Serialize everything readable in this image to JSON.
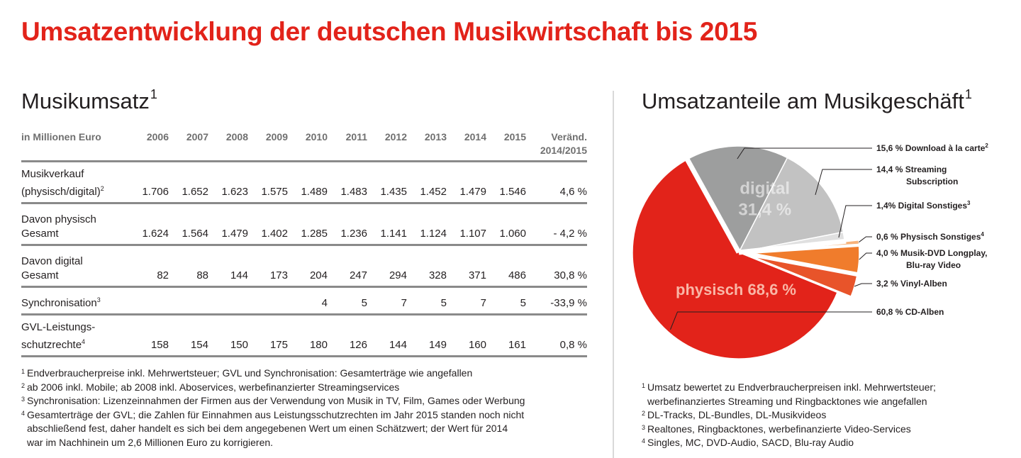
{
  "title": "Umsatzentwicklung der deutschen Musikwirtschaft bis 2015",
  "left": {
    "title": "Musikumsatz",
    "title_sup": "1",
    "columns": [
      "in Millionen Euro",
      "2006",
      "2007",
      "2008",
      "2009",
      "2010",
      "2011",
      "2012",
      "2013",
      "2014",
      "2015"
    ],
    "change_header": [
      "Veränd.",
      "2014/2015"
    ],
    "rows": [
      {
        "label": [
          "Musikverkauf",
          "(physisch/digital)"
        ],
        "sup": "2",
        "values": [
          "1.706",
          "1.652",
          "1.623",
          "1.575",
          "1.489",
          "1.483",
          "1.435",
          "1.452",
          "1.479",
          "1.546"
        ],
        "change": "4,6 %"
      },
      {
        "label": [
          "Davon physisch",
          "Gesamt"
        ],
        "sup": "",
        "values": [
          "1.624",
          "1.564",
          "1.479",
          "1.402",
          "1.285",
          "1.236",
          "1.141",
          "1.124",
          "1.107",
          "1.060"
        ],
        "change": "- 4,2 %"
      },
      {
        "label": [
          "Davon digital",
          "Gesamt"
        ],
        "sup": "",
        "values": [
          "82",
          "88",
          "144",
          "173",
          "204",
          "247",
          "294",
          "328",
          "371",
          "486"
        ],
        "change": "30,8 %"
      },
      {
        "label": [
          "Synchronisation"
        ],
        "sup": "3",
        "values": [
          "",
          "",
          "",
          "",
          "4",
          "5",
          "7",
          "5",
          "7",
          "5"
        ],
        "change": "-33,9 %"
      },
      {
        "label": [
          "GVL-Leistungs-",
          "schutzrechte"
        ],
        "sup": "4",
        "values": [
          "158",
          "154",
          "150",
          "175",
          "180",
          "126",
          "144",
          "149",
          "160",
          "161"
        ],
        "change": "0,8 %"
      }
    ],
    "footnotes": [
      {
        "num": "1",
        "lines": [
          "Endverbraucherpreise inkl. Mehrwertsteuer; GVL und Synchronisation: Gesamterträge wie angefallen"
        ]
      },
      {
        "num": "2",
        "lines": [
          "ab 2006 inkl. Mobile; ab 2008 inkl. Aboservices, werbefinanzierter Streamingservices"
        ]
      },
      {
        "num": "3",
        "lines": [
          "Synchronisation: Lizenzeinnahmen der Firmen aus der Verwendung von Musik in TV, Film, Games oder Werbung"
        ]
      },
      {
        "num": "4",
        "lines": [
          "Gesamterträge der GVL; die Zahlen für Einnahmen aus Leistungsschutzrechten im Jahr 2015 standen noch nicht",
          "abschließend fest, daher handelt es sich bei dem angegebenen Wert um einen Schätzwert; der Wert für 2014",
          "war im Nachhinein um 2,6 Millionen Euro zu korrigieren."
        ]
      }
    ]
  },
  "right": {
    "title": "Umsatzanteile am Musikgeschäft",
    "title_sup": "1",
    "footnotes": [
      {
        "num": "1",
        "lines": [
          "Umsatz bewertet zu Endverbraucherpreisen inkl. Mehrwertsteuer;",
          "werbefinanziertes Streaming und Ringbacktones wie angefallen"
        ]
      },
      {
        "num": "2",
        "lines": [
          "DL-Tracks, DL-Bundles, DL-Musikvideos"
        ]
      },
      {
        "num": "3",
        "lines": [
          "Realtones, Ringbacktones, werbefinanzierte Video-Services"
        ]
      },
      {
        "num": "4",
        "lines": [
          "Singles, MC, DVD-Audio, SACD, Blu-ray Audio"
        ]
      }
    ]
  },
  "chart_data": {
    "type": "pie",
    "unit": "%",
    "groups": [
      {
        "name": "digital",
        "value_label": "31,4 %",
        "value": 31.4,
        "color": "#9d9e9e"
      },
      {
        "name": "physisch",
        "value_label": "68,6 %",
        "value": 68.6,
        "color": "#e2231a"
      }
    ],
    "slices": [
      {
        "group": "digital",
        "value": 15.6,
        "label": "15,6 % Download à la carte",
        "sup": "2",
        "color": "#9d9e9e"
      },
      {
        "group": "digital",
        "value": 14.4,
        "label": [
          "14,4 % Streaming",
          "Subscription"
        ],
        "sup": "",
        "color": "#c2c2c2"
      },
      {
        "group": "digital",
        "value": 1.4,
        "label": "1,4% Digital Sonstiges",
        "sup": "3",
        "color": "#e0e0e0"
      },
      {
        "group": "physisch",
        "value": 0.6,
        "label": "0,6 % Physisch Sonstiges",
        "sup": "4",
        "color": "#f7b27a"
      },
      {
        "group": "physisch",
        "value": 4.0,
        "label": [
          "4,0 % Musik-DVD Longplay,",
          "Blu-ray Video"
        ],
        "sup": "",
        "color": "#f07c2c"
      },
      {
        "group": "physisch",
        "value": 3.2,
        "label": "3,2 % Vinyl-Alben",
        "sup": "",
        "color": "#e8542a"
      },
      {
        "group": "physisch",
        "value": 60.8,
        "label": "60,8 % CD-Alben",
        "sup": "",
        "color": "#e2231a"
      }
    ]
  }
}
